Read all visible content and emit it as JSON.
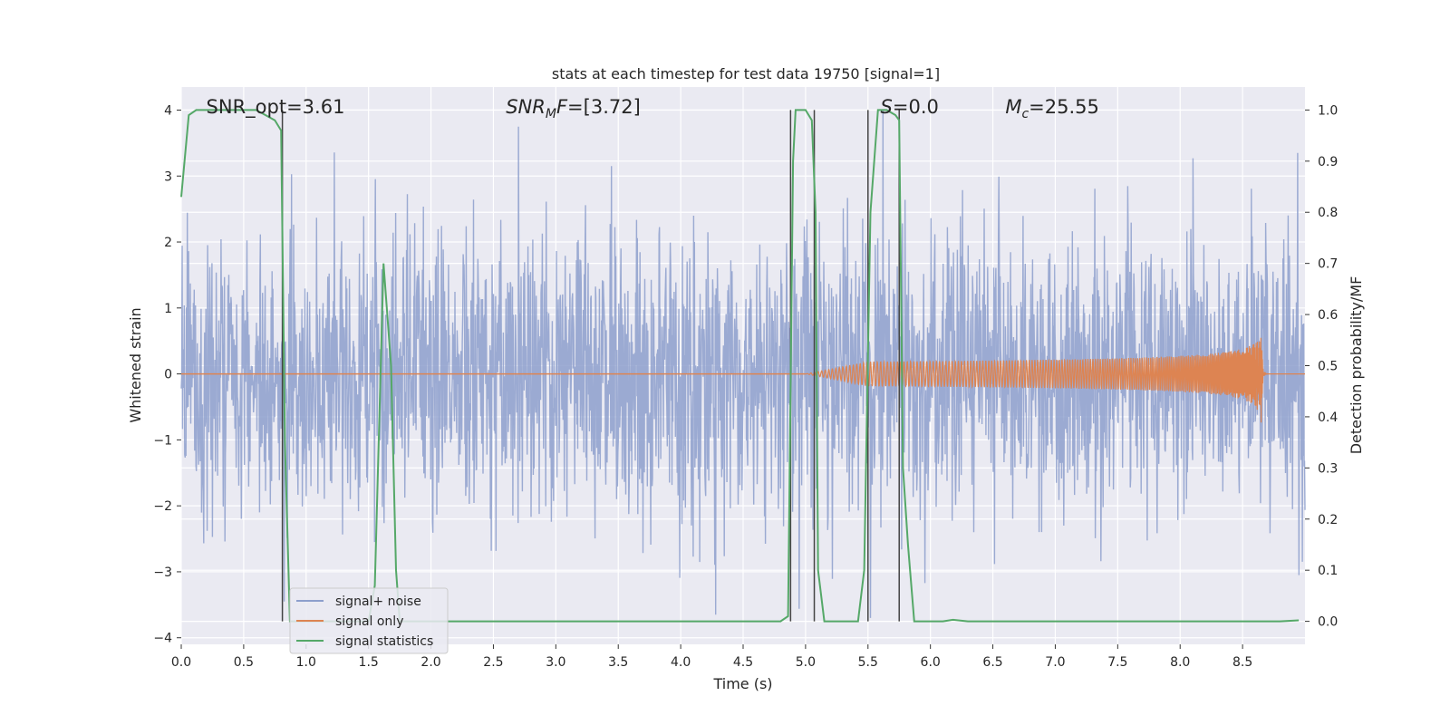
{
  "chart_data": {
    "type": "line",
    "title": "stats at each timestep for test data 19750 [signal=1]",
    "xlabel": "Time (s)",
    "ylabel_left": "Whitened strain",
    "ylabel_right": "Detection probability/MF",
    "xlim": [
      0,
      9.0
    ],
    "ylim_left": [
      -4.1,
      4.35
    ],
    "ylim_right": [
      -0.045,
      1.045
    ],
    "x_ticks": [
      0.0,
      0.5,
      1.0,
      1.5,
      2.0,
      2.5,
      3.0,
      3.5,
      4.0,
      4.5,
      5.0,
      5.5,
      6.0,
      6.5,
      7.0,
      7.5,
      8.0,
      8.5
    ],
    "x_tick_labels": [
      "0.0",
      "0.5",
      "1.0",
      "1.5",
      "2.0",
      "2.5",
      "3.0",
      "3.5",
      "4.0",
      "4.5",
      "5.0",
      "5.5",
      "6.0",
      "6.5",
      "7.0",
      "7.5",
      "8.0",
      "8.5"
    ],
    "y_left_ticks": [
      4,
      3,
      2,
      1,
      0,
      -1,
      -2,
      -3,
      -4
    ],
    "y_left_tick_labels": [
      "4",
      "3",
      "2",
      "1",
      "0",
      "−1",
      "−2",
      "−3",
      "−4"
    ],
    "y_right_ticks": [
      1.0,
      0.9,
      0.8,
      0.7,
      0.6,
      0.5,
      0.4,
      0.3,
      0.2,
      0.1,
      0.0
    ],
    "y_right_tick_labels": [
      "1.0",
      "0.9",
      "0.8",
      "0.7",
      "0.6",
      "0.5",
      "0.4",
      "0.3",
      "0.2",
      "0.1",
      "0.0"
    ],
    "grid": true,
    "annotations": [
      {
        "text": "SNR_opt=3.61",
        "x": 0.2,
        "y": 4.05
      },
      {
        "base": "SNR",
        "sub": "M",
        "tail": "F=[3.72]",
        "x": 2.6,
        "y": 4.05
      },
      {
        "base": "S",
        "sub": "",
        "tail": "=0.0",
        "x": 5.6,
        "y": 4.05
      },
      {
        "base": "M",
        "sub": "c",
        "tail": "=25.55",
        "x": 6.6,
        "y": 4.05
      }
    ],
    "legend": {
      "placement": "lower-left",
      "entries": [
        {
          "label": "signal+ noise",
          "color": "#8d9fcc"
        },
        {
          "label": "signal only",
          "color": "#dd8452"
        },
        {
          "label": "signal statistics",
          "color": "#55a868"
        }
      ]
    },
    "series": [
      {
        "name": "signal+ noise",
        "axis": "left",
        "color": "#8d9fcc",
        "kind": "noise",
        "duration": 9.0,
        "amplitude_std": 1.0,
        "envelope": [
          -3.7,
          4.0
        ],
        "notable_peaks": [
          {
            "x": 2.7,
            "y": 3.75
          },
          {
            "x": 5.62,
            "y": 4.0
          },
          {
            "x": 8.94,
            "y": 3.35
          },
          {
            "x": 4.28,
            "y": -3.65
          },
          {
            "x": 5.52,
            "y": -3.7
          },
          {
            "x": 8.95,
            "y": -3.05
          }
        ]
      },
      {
        "name": "signal only",
        "axis": "left",
        "color": "#dd8452",
        "kind": "chirp",
        "x_start": 5.0,
        "x_merge": 8.65,
        "peak_amplitude": 0.78
      },
      {
        "name": "signal statistics",
        "axis": "right",
        "color": "#55a868",
        "x": [
          0.0,
          0.06,
          0.12,
          0.2,
          0.4,
          0.6,
          0.75,
          0.8,
          0.83,
          0.87,
          0.95,
          1.5,
          1.55,
          1.62,
          1.68,
          1.72,
          1.75,
          1.8,
          2.5,
          4.0,
          4.8,
          4.86,
          4.9,
          4.92,
          4.95,
          5.0,
          5.05,
          5.08,
          5.1,
          5.15,
          5.3,
          5.42,
          5.47,
          5.52,
          5.58,
          5.65,
          5.72,
          5.75,
          5.78,
          5.82,
          5.87,
          5.95,
          6.1,
          6.18,
          6.3,
          7.0,
          8.0,
          8.8,
          8.95
        ],
        "y": [
          0.83,
          0.99,
          1.0,
          1.0,
          1.0,
          1.0,
          0.98,
          0.96,
          0.35,
          0.0,
          0.0,
          0.0,
          0.07,
          0.7,
          0.5,
          0.1,
          0.0,
          0.0,
          0.0,
          0.0,
          0.0,
          0.01,
          0.9,
          1.0,
          1.0,
          1.0,
          0.98,
          0.8,
          0.1,
          0.0,
          0.0,
          0.0,
          0.1,
          0.8,
          1.0,
          1.0,
          0.99,
          0.98,
          0.3,
          0.15,
          0.0,
          0.0,
          0.0,
          0.003,
          0.0,
          0.0,
          0.0,
          0.0,
          0.002
        ]
      }
    ],
    "vertical_lines": [
      0.81,
      4.88,
      5.07,
      5.5,
      5.75
    ],
    "vertical_line_color": "#444444"
  }
}
